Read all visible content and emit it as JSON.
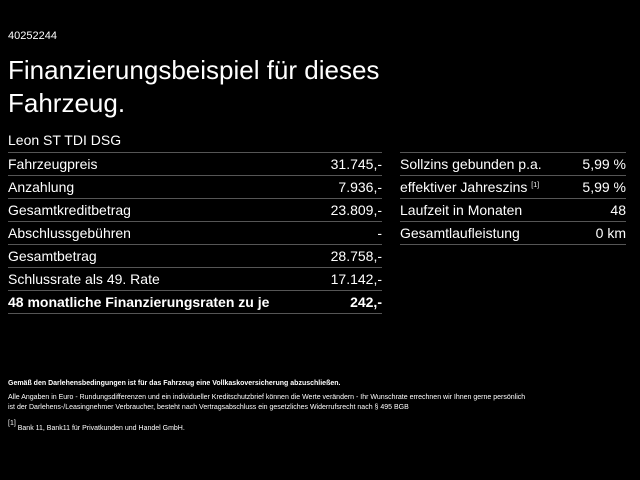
{
  "header": {
    "id": "40252244",
    "title": "Finanzierungsbeispiel für dieses Fahrzeug.",
    "model": "Leon ST TDI DSG"
  },
  "left_table": {
    "rows": [
      [
        "Fahrzeugpreis",
        "31.745,-"
      ],
      [
        "Anzahlung",
        "7.936,-"
      ],
      [
        "Gesamtkreditbetrag",
        "23.809,-"
      ],
      [
        "Abschlussgebühren",
        "-"
      ],
      [
        "Gesamtbetrag",
        "28.758,-"
      ],
      [
        "Schlussrate als 49. Rate",
        "17.142,-"
      ],
      [
        "48 monatliche Finanzierungsraten zu je",
        "242,-"
      ]
    ]
  },
  "right_table": {
    "rows": [
      {
        "label": "Sollzins gebunden p.a.",
        "value": "5,99 %"
      },
      {
        "label": "effektiver Jahreszins",
        "note": "[1]",
        "value": "5,99 %"
      },
      {
        "label": "Laufzeit in Monaten",
        "value": "48"
      },
      {
        "label": "Gesamtlaufleistung",
        "value": "0 km"
      }
    ]
  },
  "footer": {
    "bold": "Gemäß den Darlehensbedingungen ist für das Fahrzeug eine Vollkaskoversicherung abzuschließen.",
    "lines": [
      "Alle Angaben in Euro - Rundungsdifferenzen und ein individueller Kreditschutzbrief können die Werte verändern - Ihr Wunschrate errechnen wir Ihnen gerne persönlich",
      "ist der Darlehens-/Leasingnehmer Verbraucher, besteht nach Vertragsabschluss ein gesetzliches Widerrufsrecht nach § 495 BGB"
    ],
    "note_marker": "[1]",
    "note_text": "Bank 11, Bank11 für Privatkunden und Handel GmbH."
  }
}
